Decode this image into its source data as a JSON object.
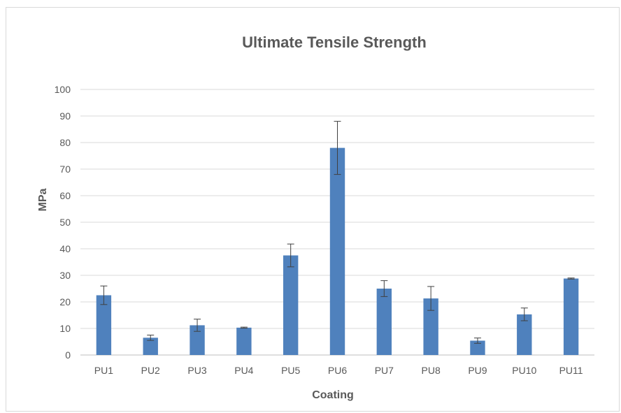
{
  "chart_data": {
    "type": "bar",
    "title": "Ultimate Tensile Strength",
    "xlabel": "Coating",
    "ylabel": "MPa",
    "categories": [
      "PU1",
      "PU2",
      "PU3",
      "PU4",
      "PU5",
      "PU6",
      "PU7",
      "PU8",
      "PU9",
      "PU10",
      "PU11"
    ],
    "series": [
      {
        "values": [
          22.5,
          6.5,
          11.2,
          10.3,
          37.5,
          78,
          25,
          21.3,
          5.4,
          15.3,
          28.8
        ],
        "error": [
          3.5,
          1.0,
          2.3,
          0.2,
          4.3,
          10,
          3,
          4.5,
          1.0,
          2.4,
          0.2
        ],
        "color": "#4f81bd"
      }
    ],
    "ylim": [
      0,
      100
    ],
    "yticks": [
      0,
      10,
      20,
      30,
      40,
      50,
      60,
      70,
      80,
      90,
      100
    ],
    "grid": true,
    "legend": "none"
  }
}
